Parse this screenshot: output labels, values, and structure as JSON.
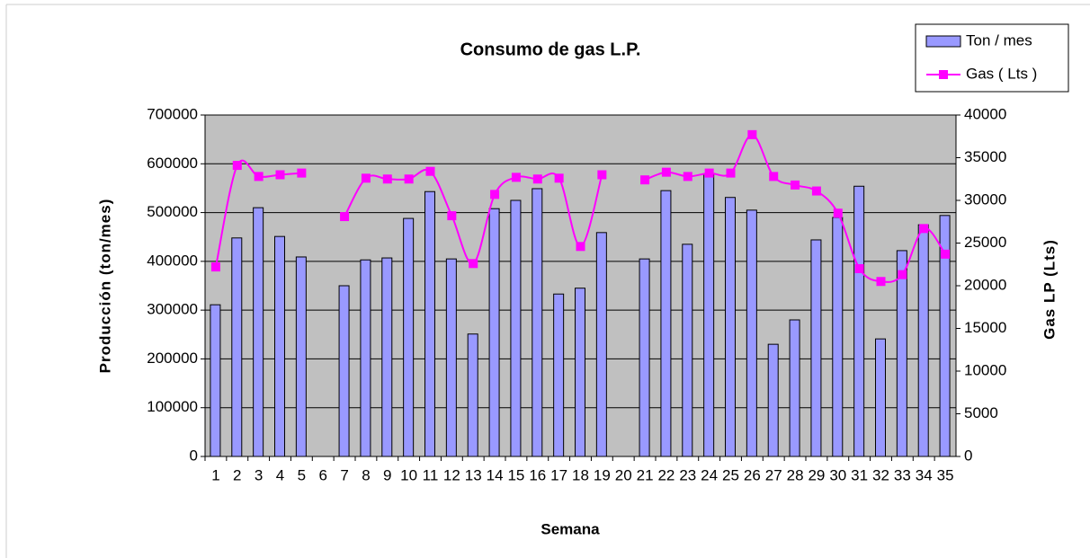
{
  "chart_data": {
    "type": "bar_line",
    "title": "Consumo de gas L.P.",
    "x_label": "Semana",
    "y_label": "Producción (ton/mes)",
    "y2_label": "Gas LP (Lts)",
    "categories": [
      "1",
      "2",
      "3",
      "4",
      "5",
      "6",
      "7",
      "8",
      "9",
      "10",
      "11",
      "12",
      "13",
      "14",
      "15",
      "16",
      "17",
      "18",
      "19",
      "20",
      "21",
      "22",
      "23",
      "24",
      "25",
      "26",
      "27",
      "28",
      "29",
      "30",
      "31",
      "32",
      "33",
      "34",
      "35"
    ],
    "series": [
      {
        "name": "Ton / mes",
        "type": "bar",
        "color": "#9999ff",
        "values": [
          311000,
          448000,
          510000,
          451000,
          409000,
          null,
          350000,
          403000,
          407000,
          488000,
          543000,
          405000,
          251000,
          508000,
          525000,
          549000,
          333000,
          345000,
          459000,
          null,
          405000,
          545000,
          435000,
          580000,
          531000,
          505000,
          230000,
          280000,
          444000,
          490000,
          554000,
          241000,
          422000,
          475000,
          494000
        ]
      },
      {
        "name": "Gas ( Lts )",
        "type": "line",
        "axis": "y2",
        "color": "#ff00ff",
        "values": [
          22200,
          34100,
          32800,
          33000,
          33200,
          null,
          28100,
          32600,
          32500,
          32500,
          33400,
          28200,
          22600,
          30700,
          32700,
          32500,
          32600,
          24600,
          33000,
          null,
          32400,
          33300,
          32800,
          33200,
          33200,
          37700,
          32800,
          31800,
          31100,
          28500,
          22000,
          20500,
          21300,
          26700,
          23700
        ]
      }
    ],
    "ylim": [
      0,
      700000
    ],
    "yticks": [
      0,
      100000,
      200000,
      300000,
      400000,
      500000,
      600000,
      700000
    ],
    "y2lim": [
      0,
      40000
    ],
    "y2ticks": [
      0,
      5000,
      10000,
      15000,
      20000,
      25000,
      30000,
      35000,
      40000
    ],
    "grid": true,
    "legend": "top-right",
    "plot_background": "#c0c0c0"
  }
}
